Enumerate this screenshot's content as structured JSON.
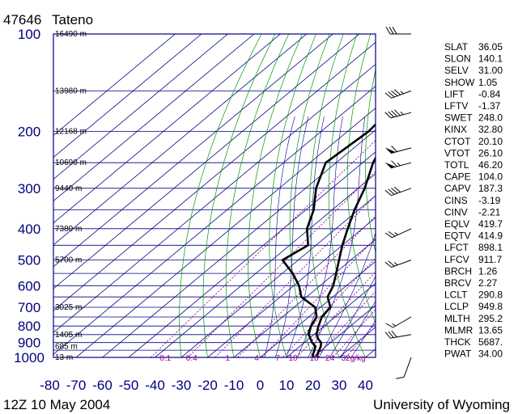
{
  "header": {
    "station_id": "47646",
    "station_name": "Tateno"
  },
  "footer": {
    "time_label": "12Z 10 May 2004",
    "source_label": "University of Wyoming"
  },
  "colors": {
    "isobar": "#000080",
    "isotherm": "#000080",
    "dry_adiabat": "#009900",
    "mixing_ratio": "#990099",
    "moist_adiabat": "#000080",
    "profile": "#000000"
  },
  "chart_data": {
    "type": "line",
    "title": "47646 Tateno",
    "xlabel": "",
    "ylabel": "",
    "x_axis": {
      "ticks": [
        "-80",
        "-70",
        "-60",
        "-50",
        "-40",
        "-30",
        "-20",
        "-10",
        "0",
        "10",
        "20",
        "30",
        "40"
      ],
      "range": [
        -80,
        40
      ]
    },
    "y_axis": {
      "ticks": [
        "100",
        "200",
        "300",
        "400",
        "500",
        "600",
        "700",
        "800",
        "900",
        "1000"
      ],
      "scale": "log",
      "range": [
        100,
        1000
      ]
    },
    "grid": true,
    "height_labels": [
      {
        "p": 100,
        "label": "16490 m"
      },
      {
        "p": 150,
        "label": "13980 m"
      },
      {
        "p": 200,
        "label": "12168 m"
      },
      {
        "p": 250,
        "label": "10690 m"
      },
      {
        "p": 300,
        "label": "9440 m"
      },
      {
        "p": 400,
        "label": "7380 m"
      },
      {
        "p": 500,
        "label": "5700 m"
      },
      {
        "p": 700,
        "label": "3025 m"
      },
      {
        "p": 850,
        "label": "1405 m"
      },
      {
        "p": 925,
        "label": "685 m"
      },
      {
        "p": 1000,
        "label": "13 m"
      }
    ],
    "mixing_ratio_labels": [
      {
        "t": -37,
        "label": "0.1"
      },
      {
        "t": -27,
        "label": "0.4"
      },
      {
        "t": -12,
        "label": "1"
      },
      {
        "t": -1,
        "label": "4"
      },
      {
        "t": 7,
        "label": "7"
      },
      {
        "t": 12,
        "label": "10"
      },
      {
        "t": 20,
        "label": "16"
      },
      {
        "t": 26,
        "label": "24"
      },
      {
        "t": 32,
        "label": "32g/kg"
      }
    ],
    "series": [
      {
        "name": "",
        "points": [
          [
            1000,
            22
          ],
          [
            985,
            20.6
          ],
          [
            925,
            18
          ],
          [
            900,
            16.4
          ],
          [
            875,
            13.4
          ],
          [
            850,
            11
          ],
          [
            800,
            7.8
          ],
          [
            750,
            5
          ],
          [
            700,
            3.8
          ],
          [
            650,
            -2
          ],
          [
            600,
            -5
          ],
          [
            550,
            -9.5
          ],
          [
            500,
            -14.5
          ],
          [
            450,
            -20
          ],
          [
            400,
            -25.5
          ],
          [
            350,
            -31.5
          ],
          [
            300,
            -37.5
          ],
          [
            250,
            -46
          ],
          [
            200,
            -54
          ],
          [
            150,
            -60
          ],
          [
            100,
            -61
          ]
        ]
      },
      {
        "name": "",
        "points": [
          [
            1000,
            20
          ],
          [
            985,
            19
          ],
          [
            925,
            16
          ],
          [
            900,
            13
          ],
          [
            850,
            8
          ],
          [
            800,
            5
          ],
          [
            750,
            3
          ],
          [
            700,
            -2
          ],
          [
            650,
            -12
          ],
          [
            600,
            -18
          ],
          [
            550,
            -26
          ],
          [
            500,
            -36
          ],
          [
            450,
            -33
          ],
          [
            400,
            -41
          ],
          [
            350,
            -47
          ],
          [
            300,
            -56
          ],
          [
            250,
            -64
          ],
          [
            200,
            -62
          ],
          [
            150,
            -65
          ],
          [
            100,
            -68
          ]
        ]
      }
    ]
  },
  "wind_barbs": [
    {
      "p": 100,
      "dir": 270,
      "spd": 30
    },
    {
      "p": 150,
      "dir": 250,
      "spd": 45
    },
    {
      "p": 175,
      "dir": 255,
      "spd": 45
    },
    {
      "p": 225,
      "dir": 255,
      "spd": 60
    },
    {
      "p": 250,
      "dir": 255,
      "spd": 65
    },
    {
      "p": 300,
      "dir": 250,
      "spd": 40
    },
    {
      "p": 400,
      "dir": 245,
      "spd": 25
    },
    {
      "p": 500,
      "dir": 250,
      "spd": 25
    },
    {
      "p": 750,
      "dir": 240,
      "spd": 15
    },
    {
      "p": 850,
      "dir": 260,
      "spd": 30
    },
    {
      "p": 1000,
      "dir": 200,
      "spd": 10
    }
  ],
  "indices": [
    {
      "key": "SLAT",
      "value": "36.05"
    },
    {
      "key": "SLON",
      "value": "140.1"
    },
    {
      "key": "SELV",
      "value": "31.00"
    },
    {
      "key": "SHOW",
      "value": "1.05"
    },
    {
      "key": "LIFT",
      "value": "-0.84"
    },
    {
      "key": "LFTV",
      "value": "-1.37"
    },
    {
      "key": "SWET",
      "value": "248.0"
    },
    {
      "key": "KINX",
      "value": "32.80"
    },
    {
      "key": "CTOT",
      "value": "20.10"
    },
    {
      "key": "VTOT",
      "value": "26.10"
    },
    {
      "key": "TOTL",
      "value": "46.20"
    },
    {
      "key": "CAPE",
      "value": "104.0"
    },
    {
      "key": "CAPV",
      "value": "187.3"
    },
    {
      "key": "CINS",
      "value": "-3.19"
    },
    {
      "key": "CINV",
      "value": "-2.21"
    },
    {
      "key": "EQLV",
      "value": "419.7"
    },
    {
      "key": "EQTV",
      "value": "414.9"
    },
    {
      "key": "LFCT",
      "value": "898.1"
    },
    {
      "key": "LFCV",
      "value": "911.7"
    },
    {
      "key": "BRCH",
      "value": "1.26"
    },
    {
      "key": "BRCV",
      "value": "2.27"
    },
    {
      "key": "LCLT",
      "value": "290.8"
    },
    {
      "key": "LCLP",
      "value": "949.8"
    },
    {
      "key": "MLTH",
      "value": "295.2"
    },
    {
      "key": "MLMR",
      "value": "13.65"
    },
    {
      "key": "THCK",
      "value": "5687."
    },
    {
      "key": "PWAT",
      "value": "34.00"
    }
  ]
}
